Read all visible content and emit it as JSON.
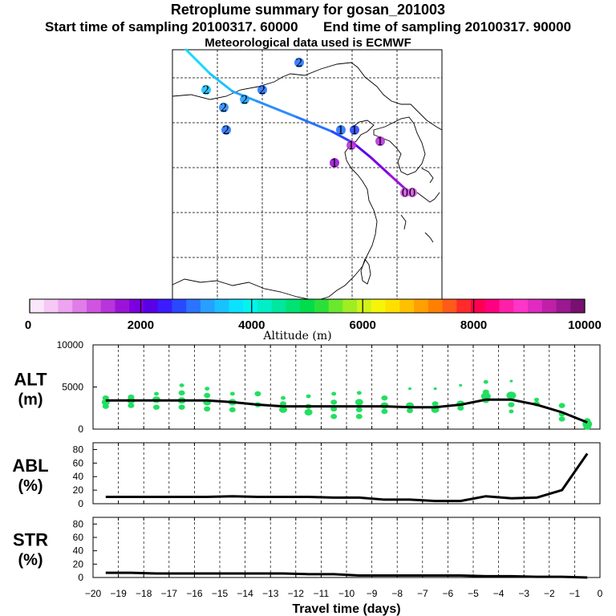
{
  "header": {
    "title": "Retroplume summary for gosan_201003",
    "start_label": "Start time of sampling 20100317. 60000",
    "end_label": "End time of sampling 20100317. 90000",
    "met_label": "Meteorological data used is ECMWF"
  },
  "map": {
    "trajectory_label_numbers": [
      "2",
      "2",
      "2",
      "2",
      "2",
      "2",
      "1",
      "1",
      "1",
      "1",
      "1",
      "0",
      "0"
    ]
  },
  "colorbar": {
    "title": "Altitude (m)",
    "ticks": [
      "0",
      "2000",
      "4000",
      "6000",
      "8000",
      "10000"
    ],
    "colors": [
      "#fbe7fb",
      "#f5c8f5",
      "#eda3f0",
      "#e07de8",
      "#cf55e0",
      "#b834db",
      "#9a14d8",
      "#7d00e0",
      "#5a00e6",
      "#3a1cff",
      "#2a48ff",
      "#2a74ff",
      "#27a0ff",
      "#19c2ff",
      "#0ae2ff",
      "#00f5ef",
      "#00efc8",
      "#00e89e",
      "#00e272",
      "#00dc4a",
      "#2be03a",
      "#6ae82e",
      "#a0ee22",
      "#d0f418",
      "#f5f50a",
      "#ffe000",
      "#ffc000",
      "#ffa000",
      "#ff8000",
      "#ff5a1a",
      "#ff2a2a",
      "#ff0050",
      "#ff0080",
      "#ff20a8",
      "#ff34c8",
      "#e02ac0",
      "#c020a8",
      "#9a1890",
      "#781070"
    ]
  },
  "chart_data": [
    {
      "type": "line",
      "name": "ALT",
      "ylabel": "ALT",
      "yunit": "(m)",
      "ylim": [
        0,
        10000
      ],
      "yticks": [
        "0",
        "5000",
        "10000"
      ],
      "x": [
        -19.5,
        -18.5,
        -17.5,
        -16.5,
        -15.5,
        -14.5,
        -13.5,
        -12.5,
        -11.5,
        -10.5,
        -9.5,
        -8.5,
        -7.5,
        -6.5,
        -5.5,
        -4.5,
        -3.5,
        -2.5,
        -1.5,
        -0.5
      ],
      "values": [
        3400,
        3400,
        3400,
        3400,
        3400,
        3200,
        2900,
        2700,
        2700,
        2700,
        2700,
        2700,
        2600,
        2600,
        2900,
        3500,
        3500,
        2900,
        2000,
        800
      ],
      "scatter": [
        [
          -19.5,
          3700,
          4
        ],
        [
          -19.5,
          3200,
          5
        ],
        [
          -19.5,
          2700,
          4
        ],
        [
          -18.5,
          3800,
          4
        ],
        [
          -18.5,
          3400,
          5
        ],
        [
          -18.5,
          2800,
          4
        ],
        [
          -17.5,
          4200,
          3
        ],
        [
          -17.5,
          3500,
          5
        ],
        [
          -17.5,
          2600,
          4
        ],
        [
          -16.5,
          5200,
          3
        ],
        [
          -16.5,
          4300,
          4
        ],
        [
          -16.5,
          3400,
          5
        ],
        [
          -16.5,
          2600,
          4
        ],
        [
          -15.5,
          4800,
          3
        ],
        [
          -15.5,
          4000,
          4
        ],
        [
          -15.5,
          3200,
          5
        ],
        [
          -15.5,
          2400,
          4
        ],
        [
          -14.5,
          4200,
          3
        ],
        [
          -14.5,
          3200,
          5
        ],
        [
          -14.5,
          2300,
          4
        ],
        [
          -13.5,
          4200,
          4
        ],
        [
          -13.5,
          2900,
          4
        ],
        [
          -12.5,
          3700,
          3
        ],
        [
          -12.5,
          3000,
          4
        ],
        [
          -12.5,
          2300,
          5
        ],
        [
          -11.5,
          3900,
          3
        ],
        [
          -11.5,
          2700,
          4
        ],
        [
          -11.5,
          2000,
          5
        ],
        [
          -10.5,
          4200,
          3
        ],
        [
          -10.5,
          3200,
          4
        ],
        [
          -10.5,
          2400,
          4
        ],
        [
          -10.5,
          1500,
          4
        ],
        [
          -9.5,
          4300,
          3
        ],
        [
          -9.5,
          3200,
          5
        ],
        [
          -9.5,
          2300,
          4
        ],
        [
          -9.5,
          1500,
          4
        ],
        [
          -8.5,
          3700,
          4
        ],
        [
          -8.5,
          2800,
          5
        ],
        [
          -8.5,
          2100,
          4
        ],
        [
          -7.5,
          4800,
          2
        ],
        [
          -7.5,
          2800,
          5
        ],
        [
          -7.5,
          2200,
          4
        ],
        [
          -6.5,
          4800,
          2
        ],
        [
          -6.5,
          3000,
          4
        ],
        [
          -6.5,
          2300,
          5
        ],
        [
          -5.5,
          5200,
          2
        ],
        [
          -5.5,
          3000,
          5
        ],
        [
          -5.5,
          2500,
          4
        ],
        [
          -4.5,
          5600,
          3
        ],
        [
          -4.5,
          4400,
          4
        ],
        [
          -4.5,
          3900,
          6
        ],
        [
          -4.5,
          3400,
          4
        ],
        [
          -3.5,
          5700,
          2
        ],
        [
          -3.5,
          4000,
          6
        ],
        [
          -3.5,
          2900,
          4
        ],
        [
          -3.5,
          2100,
          3
        ],
        [
          -2.5,
          3500,
          3
        ],
        [
          -2.5,
          3000,
          4
        ],
        [
          -1.5,
          2800,
          4
        ],
        [
          -1.5,
          1800,
          4
        ],
        [
          -1.5,
          1200,
          4
        ],
        [
          -0.5,
          1000,
          4
        ],
        [
          -0.5,
          600,
          6
        ],
        [
          -0.5,
          300,
          5
        ]
      ]
    },
    {
      "type": "line",
      "name": "ABL",
      "ylabel": "ABL",
      "yunit": "(%)",
      "ylim": [
        0,
        90
      ],
      "yticks": [
        "0",
        "20",
        "40",
        "60",
        "80"
      ],
      "x": [
        -19.5,
        -18.5,
        -17.5,
        -16.5,
        -15.5,
        -14.5,
        -13.5,
        -12.5,
        -11.5,
        -10.5,
        -9.5,
        -8.5,
        -7.5,
        -6.5,
        -5.5,
        -4.5,
        -3.5,
        -2.5,
        -1.5,
        -0.5
      ],
      "values": [
        10,
        10,
        10,
        10,
        10,
        11,
        10,
        10,
        10,
        9,
        9,
        6,
        6,
        4,
        4,
        11,
        8,
        9,
        20,
        74
      ]
    },
    {
      "type": "line",
      "name": "STR",
      "ylabel": "STR",
      "yunit": "(%)",
      "ylim": [
        0,
        90
      ],
      "yticks": [
        "0",
        "20",
        "40",
        "60",
        "80"
      ],
      "x": [
        -19.5,
        -18.5,
        -17.5,
        -16.5,
        -15.5,
        -14.5,
        -13.5,
        -12.5,
        -11.5,
        -10.5,
        -9.5,
        -8.5,
        -7.5,
        -6.5,
        -5.5,
        -4.5,
        -3.5,
        -2.5,
        -1.5,
        -0.5
      ],
      "values": [
        7,
        7,
        6,
        6,
        6,
        6,
        6,
        6,
        5,
        5,
        3,
        3,
        3,
        3,
        3,
        2,
        2,
        1,
        1,
        0
      ]
    }
  ],
  "xaxis": {
    "title": "Travel time (days)",
    "tick_labels": [
      "−20",
      "−19",
      "−18",
      "−17",
      "−16",
      "−15",
      "−14",
      "−13",
      "−12",
      "−11",
      "−10",
      "−9",
      "−8",
      "−7",
      "−6",
      "−5",
      "−4",
      "−3",
      "−2",
      "−1",
      "0"
    ],
    "xlim": [
      -20,
      0
    ]
  }
}
